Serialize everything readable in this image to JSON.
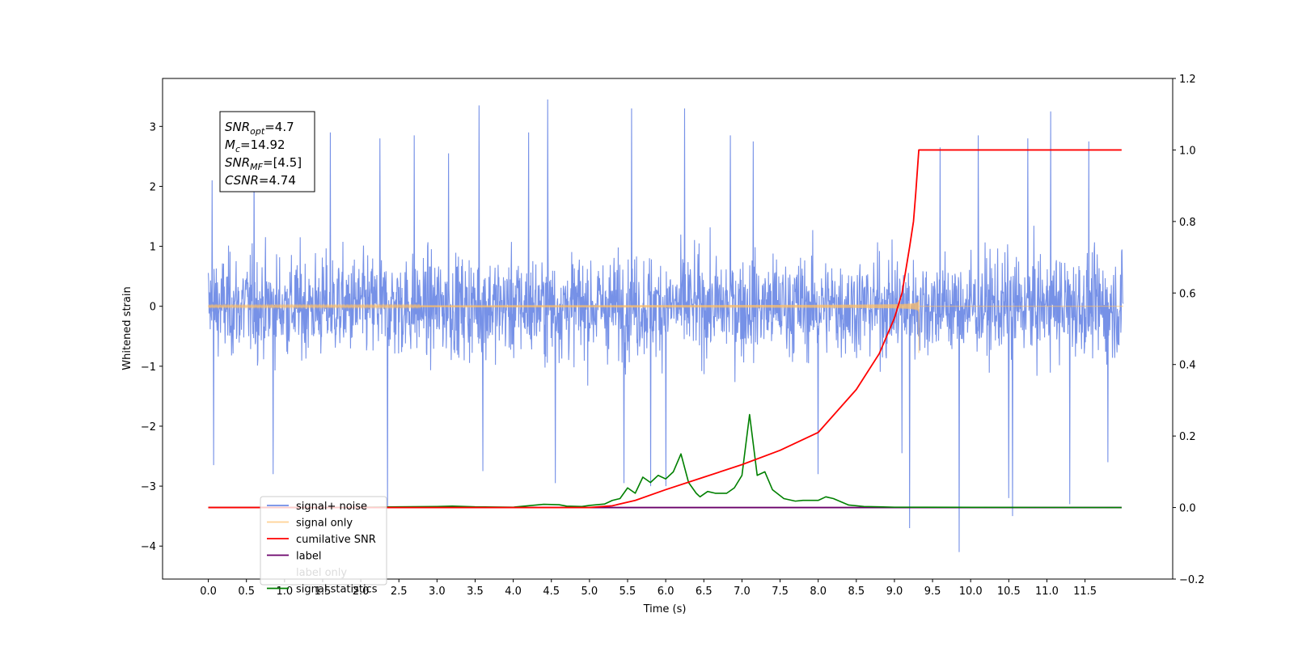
{
  "chart_data": {
    "type": "line",
    "xlabel": "Time (s)",
    "ylabel_left": "Whitened strain",
    "ylabel_right": "",
    "xlim": [
      -0.6,
      12.65
    ],
    "ylim_left": [
      -4.55,
      3.8
    ],
    "ylim_right": [
      -0.2,
      1.2
    ],
    "x_ticks": [
      0.0,
      0.5,
      1.0,
      1.5,
      2.0,
      2.5,
      3.0,
      3.5,
      4.0,
      4.5,
      5.0,
      5.5,
      6.0,
      6.5,
      7.0,
      7.5,
      8.0,
      8.5,
      9.0,
      9.5,
      10.0,
      10.5,
      11.0,
      11.5
    ],
    "x_tick_labels": [
      "0.0",
      "0.5",
      "1.0",
      "1.5",
      "2.0",
      "2.5",
      "3.0",
      "3.5",
      "4.0",
      "4.5",
      "5.0",
      "5.5",
      "6.0",
      "6.5",
      "7.0",
      "7.5",
      "8.0",
      "8.5",
      "9.0",
      "9.5",
      "10.0",
      "10.5",
      "11.0",
      "11.5"
    ],
    "y_left_ticks": [
      -4,
      -3,
      -2,
      -1,
      0,
      1,
      2,
      3
    ],
    "y_left_tick_labels": [
      "−4",
      "−3",
      "−2",
      "−1",
      "0",
      "1",
      "2",
      "3"
    ],
    "y_right_ticks": [
      -0.2,
      0.0,
      0.2,
      0.4,
      0.6,
      0.8,
      1.0,
      1.2
    ],
    "y_right_tick_labels": [
      "−0.2",
      "0.0",
      "0.2",
      "0.4",
      "0.6",
      "0.8",
      "1.0",
      "1.2"
    ],
    "grid": false,
    "legend_position": "lower-left",
    "series": [
      {
        "name": "signal+ noise",
        "axis": "left",
        "color": "#6f8be6",
        "description_values": {
          "x_range": [
            0.0,
            12.0
          ],
          "typical_range": [
            -1.6,
            1.6
          ],
          "max": 3.45,
          "min": -4.1
        },
        "spikes": [
          [
            0.05,
            2.1
          ],
          [
            0.07,
            -2.65
          ],
          [
            0.6,
            2.55
          ],
          [
            0.85,
            -2.8
          ],
          [
            1.6,
            2.9
          ],
          [
            2.25,
            2.8
          ],
          [
            2.35,
            -3.35
          ],
          [
            2.7,
            2.85
          ],
          [
            3.15,
            2.55
          ],
          [
            3.55,
            3.35
          ],
          [
            3.6,
            -2.75
          ],
          [
            4.2,
            2.9
          ],
          [
            4.45,
            3.45
          ],
          [
            4.55,
            -2.95
          ],
          [
            5.45,
            -2.95
          ],
          [
            5.55,
            3.3
          ],
          [
            5.8,
            -3.0
          ],
          [
            6.0,
            -3.0
          ],
          [
            6.25,
            3.3
          ],
          [
            6.85,
            2.85
          ],
          [
            7.15,
            2.75
          ],
          [
            8.0,
            -2.8
          ],
          [
            9.1,
            -2.45
          ],
          [
            9.2,
            -3.7
          ],
          [
            9.6,
            2.65
          ],
          [
            9.85,
            -4.1
          ],
          [
            10.1,
            2.85
          ],
          [
            10.5,
            -3.2
          ],
          [
            10.55,
            -3.5
          ],
          [
            10.75,
            2.8
          ],
          [
            11.05,
            3.25
          ],
          [
            11.3,
            -3.3
          ],
          [
            11.55,
            2.75
          ],
          [
            11.8,
            -2.6
          ]
        ]
      },
      {
        "name": "signal only",
        "axis": "left",
        "color": "#ffbf66",
        "description_values": {
          "x_range": [
            0.0,
            9.32
          ],
          "amp_start": 0.015,
          "amp_peak": 0.7,
          "merger_time": 9.32
        }
      },
      {
        "name": "cumilative SNR",
        "axis": "right",
        "color": "#ff0000",
        "points": [
          [
            0.0,
            0.0
          ],
          [
            5.0,
            0.0
          ],
          [
            5.3,
            0.005
          ],
          [
            5.6,
            0.02
          ],
          [
            6.0,
            0.05
          ],
          [
            6.5,
            0.085
          ],
          [
            7.0,
            0.12
          ],
          [
            7.5,
            0.16
          ],
          [
            8.0,
            0.21
          ],
          [
            8.5,
            0.33
          ],
          [
            8.8,
            0.43
          ],
          [
            9.0,
            0.53
          ],
          [
            9.1,
            0.6
          ],
          [
            9.2,
            0.73
          ],
          [
            9.25,
            0.8
          ],
          [
            9.28,
            0.88
          ],
          [
            9.32,
            1.0
          ],
          [
            11.98,
            1.0
          ]
        ]
      },
      {
        "name": "label",
        "axis": "right",
        "color": "#6a006a",
        "points": [
          [
            0.0,
            0.0
          ],
          [
            11.98,
            0.0
          ]
        ]
      },
      {
        "name": "label only",
        "axis": "right",
        "color": "#ffffff",
        "points": []
      },
      {
        "name": "signal statistics",
        "axis": "right",
        "color": "#008000",
        "points": [
          [
            0.0,
            0.0
          ],
          [
            1.0,
            0.0
          ],
          [
            2.0,
            0.001
          ],
          [
            2.5,
            0.002
          ],
          [
            3.0,
            0.003
          ],
          [
            3.2,
            0.004
          ],
          [
            3.5,
            0.002
          ],
          [
            4.0,
            0.001
          ],
          [
            4.4,
            0.009
          ],
          [
            4.6,
            0.008
          ],
          [
            4.7,
            0.004
          ],
          [
            4.9,
            0.003
          ],
          [
            5.0,
            0.006
          ],
          [
            5.2,
            0.01
          ],
          [
            5.3,
            0.02
          ],
          [
            5.4,
            0.025
          ],
          [
            5.5,
            0.055
          ],
          [
            5.6,
            0.04
          ],
          [
            5.7,
            0.085
          ],
          [
            5.8,
            0.07
          ],
          [
            5.9,
            0.09
          ],
          [
            6.0,
            0.08
          ],
          [
            6.1,
            0.1
          ],
          [
            6.2,
            0.15
          ],
          [
            6.3,
            0.07
          ],
          [
            6.4,
            0.04
          ],
          [
            6.45,
            0.03
          ],
          [
            6.55,
            0.045
          ],
          [
            6.65,
            0.04
          ],
          [
            6.8,
            0.04
          ],
          [
            6.9,
            0.055
          ],
          [
            7.0,
            0.09
          ],
          [
            7.1,
            0.26
          ],
          [
            7.2,
            0.09
          ],
          [
            7.3,
            0.1
          ],
          [
            7.4,
            0.05
          ],
          [
            7.55,
            0.025
          ],
          [
            7.7,
            0.018
          ],
          [
            7.8,
            0.02
          ],
          [
            8.0,
            0.02
          ],
          [
            8.1,
            0.03
          ],
          [
            8.2,
            0.025
          ],
          [
            8.4,
            0.007
          ],
          [
            8.6,
            0.003
          ],
          [
            8.8,
            0.002
          ],
          [
            9.0,
            0.001
          ],
          [
            11.98,
            0.0
          ]
        ]
      }
    ],
    "annotation": {
      "lines": [
        {
          "main": "SNR",
          "sub": "opt",
          "value": "=4.7"
        },
        {
          "main": "M",
          "sub": "c",
          "value": "=14.92"
        },
        {
          "main": "SNR",
          "sub": "MF",
          "value": "=[4.5]"
        },
        {
          "main": "CSNR",
          "sub": "",
          "value": "=4.74"
        }
      ]
    }
  }
}
